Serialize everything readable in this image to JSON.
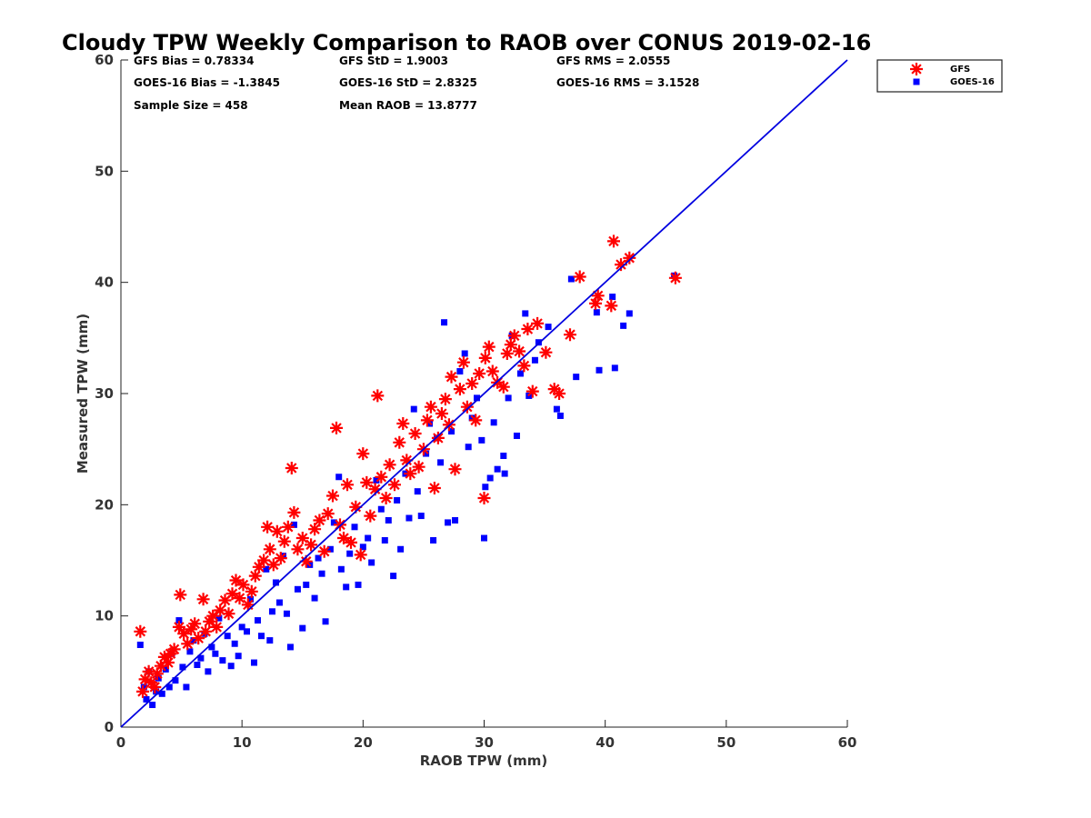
{
  "chart_data": {
    "type": "scatter",
    "title": "Cloudy TPW Weekly Comparison to RAOB over CONUS 2019-02-16",
    "xlabel": "RAOB TPW (mm)",
    "ylabel": "Measured TPW (mm)",
    "xlim": [
      0,
      60
    ],
    "ylim": [
      0,
      60
    ],
    "xticks": [
      "0",
      "10",
      "20",
      "30",
      "40",
      "50",
      "60"
    ],
    "yticks": [
      "0",
      "10",
      "20",
      "30",
      "40",
      "50",
      "60"
    ],
    "grid": false,
    "legend_position": "top-right, outside plot",
    "stats": {
      "gfs_bias": "GFS Bias = 0.78334",
      "goes_bias": "GOES-16 Bias = -1.3845",
      "sample_size": "Sample Size = 458",
      "gfs_std": "GFS StD = 1.9003",
      "goes_std": "GOES-16 StD = 2.8325",
      "mean_raob": "Mean RAOB = 13.8777",
      "gfs_rms": "GFS RMS = 2.0555",
      "goes_rms": "GOES-16 RMS = 3.1528"
    },
    "reference_line": {
      "x": [
        0,
        60
      ],
      "y": [
        0,
        60
      ],
      "color": "#0000e0"
    },
    "series": [
      {
        "name": "GFS",
        "marker": "asterisk",
        "color": "#ff0000",
        "points": [
          [
            1.6,
            8.6
          ],
          [
            1.8,
            3.2
          ],
          [
            2.0,
            4.3
          ],
          [
            2.3,
            5.0
          ],
          [
            2.5,
            4.0
          ],
          [
            2.8,
            3.6
          ],
          [
            3.0,
            4.8
          ],
          [
            3.3,
            5.5
          ],
          [
            3.6,
            6.3
          ],
          [
            3.9,
            5.8
          ],
          [
            4.1,
            6.6
          ],
          [
            4.4,
            7.0
          ],
          [
            4.8,
            9.0
          ],
          [
            4.9,
            11.9
          ],
          [
            5.2,
            8.4
          ],
          [
            5.5,
            7.5
          ],
          [
            5.8,
            8.8
          ],
          [
            6.1,
            9.3
          ],
          [
            6.4,
            8.0
          ],
          [
            6.8,
            11.5
          ],
          [
            7.0,
            8.6
          ],
          [
            7.3,
            9.5
          ],
          [
            7.6,
            10.0
          ],
          [
            7.9,
            9.0
          ],
          [
            8.2,
            10.5
          ],
          [
            8.6,
            11.4
          ],
          [
            8.9,
            10.2
          ],
          [
            9.2,
            12.0
          ],
          [
            9.5,
            13.2
          ],
          [
            9.8,
            11.6
          ],
          [
            10.1,
            12.8
          ],
          [
            10.5,
            11.0
          ],
          [
            10.8,
            12.2
          ],
          [
            11.1,
            13.6
          ],
          [
            11.4,
            14.4
          ],
          [
            11.8,
            15.0
          ],
          [
            12.1,
            18.0
          ],
          [
            12.3,
            16.0
          ],
          [
            12.6,
            14.6
          ],
          [
            12.9,
            17.6
          ],
          [
            13.2,
            15.2
          ],
          [
            13.5,
            16.7
          ],
          [
            13.8,
            18.0
          ],
          [
            14.1,
            23.3
          ],
          [
            14.3,
            19.3
          ],
          [
            14.6,
            16.0
          ],
          [
            15.0,
            17.0
          ],
          [
            15.3,
            14.9
          ],
          [
            15.7,
            16.4
          ],
          [
            16.0,
            17.8
          ],
          [
            16.4,
            18.6
          ],
          [
            16.8,
            15.8
          ],
          [
            17.1,
            19.2
          ],
          [
            17.5,
            20.8
          ],
          [
            17.8,
            26.9
          ],
          [
            18.1,
            18.2
          ],
          [
            18.4,
            17.0
          ],
          [
            18.7,
            21.8
          ],
          [
            19.0,
            16.6
          ],
          [
            19.4,
            19.8
          ],
          [
            19.8,
            15.5
          ],
          [
            20.0,
            24.6
          ],
          [
            20.3,
            22.0
          ],
          [
            20.6,
            19.0
          ],
          [
            21.0,
            21.4
          ],
          [
            21.2,
            29.8
          ],
          [
            21.5,
            22.5
          ],
          [
            21.9,
            20.6
          ],
          [
            22.2,
            23.6
          ],
          [
            22.6,
            21.8
          ],
          [
            23.0,
            25.6
          ],
          [
            23.3,
            27.3
          ],
          [
            23.6,
            24.0
          ],
          [
            23.9,
            22.8
          ],
          [
            24.3,
            26.4
          ],
          [
            24.6,
            23.4
          ],
          [
            25.0,
            25.0
          ],
          [
            25.3,
            27.6
          ],
          [
            25.6,
            28.8
          ],
          [
            25.9,
            21.5
          ],
          [
            26.2,
            26.0
          ],
          [
            26.5,
            28.2
          ],
          [
            26.8,
            29.5
          ],
          [
            27.1,
            27.2
          ],
          [
            27.3,
            31.5
          ],
          [
            27.6,
            23.2
          ],
          [
            28.0,
            30.4
          ],
          [
            28.3,
            32.8
          ],
          [
            28.6,
            28.8
          ],
          [
            29.0,
            30.9
          ],
          [
            29.3,
            27.6
          ],
          [
            29.6,
            31.8
          ],
          [
            30.0,
            20.6
          ],
          [
            30.1,
            33.2
          ],
          [
            30.4,
            34.2
          ],
          [
            30.7,
            32.0
          ],
          [
            31.1,
            31.0
          ],
          [
            31.6,
            30.6
          ],
          [
            31.9,
            33.6
          ],
          [
            32.2,
            34.4
          ],
          [
            32.5,
            35.2
          ],
          [
            32.9,
            33.8
          ],
          [
            33.3,
            32.5
          ],
          [
            33.6,
            35.8
          ],
          [
            34.0,
            30.2
          ],
          [
            34.4,
            36.3
          ],
          [
            35.1,
            33.7
          ],
          [
            35.8,
            30.4
          ],
          [
            36.2,
            30.0
          ],
          [
            37.1,
            35.3
          ],
          [
            37.9,
            40.5
          ],
          [
            39.2,
            38.1
          ],
          [
            39.4,
            38.8
          ],
          [
            40.5,
            37.9
          ],
          [
            40.7,
            43.7
          ],
          [
            41.3,
            41.6
          ],
          [
            42.0,
            42.2
          ],
          [
            45.8,
            40.4
          ]
        ]
      },
      {
        "name": "GOES-16",
        "marker": "square",
        "color": "#0000ff",
        "points": [
          [
            1.6,
            7.4
          ],
          [
            1.9,
            3.6
          ],
          [
            2.1,
            2.5
          ],
          [
            2.3,
            5.0
          ],
          [
            2.6,
            2.0
          ],
          [
            2.9,
            3.2
          ],
          [
            3.1,
            4.4
          ],
          [
            3.4,
            3.0
          ],
          [
            3.7,
            5.2
          ],
          [
            4.0,
            3.6
          ],
          [
            4.2,
            6.6
          ],
          [
            4.5,
            4.2
          ],
          [
            4.8,
            9.6
          ],
          [
            5.1,
            5.4
          ],
          [
            5.4,
            3.6
          ],
          [
            5.7,
            6.8
          ],
          [
            6.0,
            7.8
          ],
          [
            6.3,
            5.6
          ],
          [
            6.6,
            6.2
          ],
          [
            6.9,
            8.4
          ],
          [
            7.2,
            5.0
          ],
          [
            7.5,
            7.2
          ],
          [
            7.8,
            6.6
          ],
          [
            8.1,
            9.8
          ],
          [
            8.4,
            6.0
          ],
          [
            8.8,
            8.2
          ],
          [
            9.1,
            5.5
          ],
          [
            9.4,
            7.5
          ],
          [
            9.7,
            6.4
          ],
          [
            10.0,
            9.0
          ],
          [
            10.4,
            8.6
          ],
          [
            10.7,
            11.5
          ],
          [
            11.0,
            5.8
          ],
          [
            11.3,
            9.6
          ],
          [
            11.6,
            8.2
          ],
          [
            12.0,
            14.2
          ],
          [
            12.3,
            7.8
          ],
          [
            12.5,
            10.4
          ],
          [
            12.8,
            13.0
          ],
          [
            13.1,
            11.2
          ],
          [
            13.4,
            15.4
          ],
          [
            13.7,
            10.2
          ],
          [
            14.0,
            7.2
          ],
          [
            14.3,
            18.2
          ],
          [
            14.6,
            12.4
          ],
          [
            15.0,
            8.9
          ],
          [
            15.3,
            12.8
          ],
          [
            15.6,
            14.6
          ],
          [
            16.0,
            11.6
          ],
          [
            16.3,
            15.2
          ],
          [
            16.6,
            13.8
          ],
          [
            16.9,
            9.5
          ],
          [
            17.3,
            16.0
          ],
          [
            17.6,
            18.4
          ],
          [
            18.0,
            22.5
          ],
          [
            18.2,
            14.2
          ],
          [
            18.6,
            12.6
          ],
          [
            18.9,
            15.6
          ],
          [
            19.3,
            18.0
          ],
          [
            19.6,
            12.8
          ],
          [
            20.0,
            16.2
          ],
          [
            20.4,
            17.0
          ],
          [
            20.7,
            14.8
          ],
          [
            21.1,
            22.2
          ],
          [
            21.5,
            19.6
          ],
          [
            21.8,
            16.8
          ],
          [
            22.1,
            18.6
          ],
          [
            22.5,
            13.6
          ],
          [
            22.8,
            20.4
          ],
          [
            23.1,
            16.0
          ],
          [
            23.5,
            22.8
          ],
          [
            23.8,
            18.8
          ],
          [
            24.2,
            28.6
          ],
          [
            24.5,
            21.2
          ],
          [
            24.8,
            19.0
          ],
          [
            25.2,
            24.6
          ],
          [
            25.5,
            27.3
          ],
          [
            25.8,
            16.8
          ],
          [
            26.1,
            26.0
          ],
          [
            26.4,
            23.8
          ],
          [
            26.7,
            36.4
          ],
          [
            27.0,
            18.4
          ],
          [
            27.3,
            26.6
          ],
          [
            27.6,
            18.6
          ],
          [
            28.0,
            32.0
          ],
          [
            28.4,
            33.6
          ],
          [
            28.7,
            25.2
          ],
          [
            29.0,
            27.8
          ],
          [
            29.4,
            29.6
          ],
          [
            29.8,
            25.8
          ],
          [
            30.0,
            17.0
          ],
          [
            30.1,
            21.6
          ],
          [
            30.5,
            22.4
          ],
          [
            30.8,
            27.4
          ],
          [
            31.1,
            23.2
          ],
          [
            31.6,
            24.4
          ],
          [
            31.7,
            22.8
          ],
          [
            32.0,
            29.6
          ],
          [
            32.3,
            35.2
          ],
          [
            32.7,
            26.2
          ],
          [
            33.0,
            31.8
          ],
          [
            33.4,
            37.2
          ],
          [
            33.7,
            29.8
          ],
          [
            34.2,
            33.0
          ],
          [
            34.5,
            34.6
          ],
          [
            35.3,
            36.0
          ],
          [
            36.0,
            28.6
          ],
          [
            36.3,
            28.0
          ],
          [
            37.2,
            40.3
          ],
          [
            37.6,
            31.5
          ],
          [
            39.3,
            37.3
          ],
          [
            39.5,
            32.1
          ],
          [
            40.6,
            38.7
          ],
          [
            40.8,
            32.3
          ],
          [
            41.5,
            36.1
          ],
          [
            42.0,
            37.2
          ],
          [
            45.7,
            40.6
          ]
        ]
      }
    ]
  }
}
